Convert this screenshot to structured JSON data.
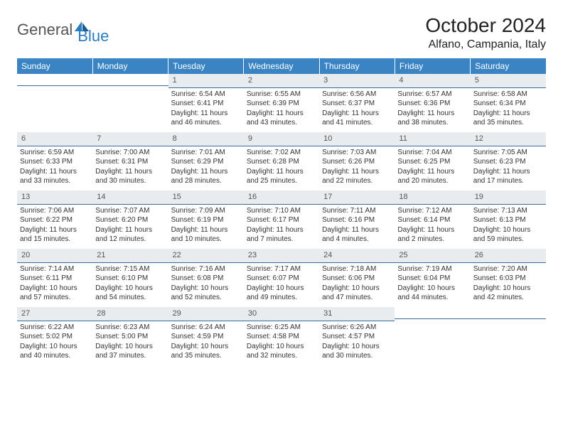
{
  "brand": {
    "word1": "General",
    "word2": "Blue"
  },
  "title": "October 2024",
  "location": "Alfano, Campania, Italy",
  "colors": {
    "header_bg": "#3a84c4",
    "daynum_bg": "#e8ecef",
    "rule": "#3a6a9a",
    "logo_blue": "#2b7bbf"
  },
  "weekdays": [
    "Sunday",
    "Monday",
    "Tuesday",
    "Wednesday",
    "Thursday",
    "Friday",
    "Saturday"
  ],
  "weeks": [
    [
      null,
      null,
      {
        "n": "1",
        "sr": "6:54 AM",
        "ss": "6:41 PM",
        "dl": "11 hours and 46 minutes."
      },
      {
        "n": "2",
        "sr": "6:55 AM",
        "ss": "6:39 PM",
        "dl": "11 hours and 43 minutes."
      },
      {
        "n": "3",
        "sr": "6:56 AM",
        "ss": "6:37 PM",
        "dl": "11 hours and 41 minutes."
      },
      {
        "n": "4",
        "sr": "6:57 AM",
        "ss": "6:36 PM",
        "dl": "11 hours and 38 minutes."
      },
      {
        "n": "5",
        "sr": "6:58 AM",
        "ss": "6:34 PM",
        "dl": "11 hours and 35 minutes."
      }
    ],
    [
      {
        "n": "6",
        "sr": "6:59 AM",
        "ss": "6:33 PM",
        "dl": "11 hours and 33 minutes."
      },
      {
        "n": "7",
        "sr": "7:00 AM",
        "ss": "6:31 PM",
        "dl": "11 hours and 30 minutes."
      },
      {
        "n": "8",
        "sr": "7:01 AM",
        "ss": "6:29 PM",
        "dl": "11 hours and 28 minutes."
      },
      {
        "n": "9",
        "sr": "7:02 AM",
        "ss": "6:28 PM",
        "dl": "11 hours and 25 minutes."
      },
      {
        "n": "10",
        "sr": "7:03 AM",
        "ss": "6:26 PM",
        "dl": "11 hours and 22 minutes."
      },
      {
        "n": "11",
        "sr": "7:04 AM",
        "ss": "6:25 PM",
        "dl": "11 hours and 20 minutes."
      },
      {
        "n": "12",
        "sr": "7:05 AM",
        "ss": "6:23 PM",
        "dl": "11 hours and 17 minutes."
      }
    ],
    [
      {
        "n": "13",
        "sr": "7:06 AM",
        "ss": "6:22 PM",
        "dl": "11 hours and 15 minutes."
      },
      {
        "n": "14",
        "sr": "7:07 AM",
        "ss": "6:20 PM",
        "dl": "11 hours and 12 minutes."
      },
      {
        "n": "15",
        "sr": "7:09 AM",
        "ss": "6:19 PM",
        "dl": "11 hours and 10 minutes."
      },
      {
        "n": "16",
        "sr": "7:10 AM",
        "ss": "6:17 PM",
        "dl": "11 hours and 7 minutes."
      },
      {
        "n": "17",
        "sr": "7:11 AM",
        "ss": "6:16 PM",
        "dl": "11 hours and 4 minutes."
      },
      {
        "n": "18",
        "sr": "7:12 AM",
        "ss": "6:14 PM",
        "dl": "11 hours and 2 minutes."
      },
      {
        "n": "19",
        "sr": "7:13 AM",
        "ss": "6:13 PM",
        "dl": "10 hours and 59 minutes."
      }
    ],
    [
      {
        "n": "20",
        "sr": "7:14 AM",
        "ss": "6:11 PM",
        "dl": "10 hours and 57 minutes."
      },
      {
        "n": "21",
        "sr": "7:15 AM",
        "ss": "6:10 PM",
        "dl": "10 hours and 54 minutes."
      },
      {
        "n": "22",
        "sr": "7:16 AM",
        "ss": "6:08 PM",
        "dl": "10 hours and 52 minutes."
      },
      {
        "n": "23",
        "sr": "7:17 AM",
        "ss": "6:07 PM",
        "dl": "10 hours and 49 minutes."
      },
      {
        "n": "24",
        "sr": "7:18 AM",
        "ss": "6:06 PM",
        "dl": "10 hours and 47 minutes."
      },
      {
        "n": "25",
        "sr": "7:19 AM",
        "ss": "6:04 PM",
        "dl": "10 hours and 44 minutes."
      },
      {
        "n": "26",
        "sr": "7:20 AM",
        "ss": "6:03 PM",
        "dl": "10 hours and 42 minutes."
      }
    ],
    [
      {
        "n": "27",
        "sr": "6:22 AM",
        "ss": "5:02 PM",
        "dl": "10 hours and 40 minutes."
      },
      {
        "n": "28",
        "sr": "6:23 AM",
        "ss": "5:00 PM",
        "dl": "10 hours and 37 minutes."
      },
      {
        "n": "29",
        "sr": "6:24 AM",
        "ss": "4:59 PM",
        "dl": "10 hours and 35 minutes."
      },
      {
        "n": "30",
        "sr": "6:25 AM",
        "ss": "4:58 PM",
        "dl": "10 hours and 32 minutes."
      },
      {
        "n": "31",
        "sr": "6:26 AM",
        "ss": "4:57 PM",
        "dl": "10 hours and 30 minutes."
      },
      null,
      null
    ]
  ]
}
